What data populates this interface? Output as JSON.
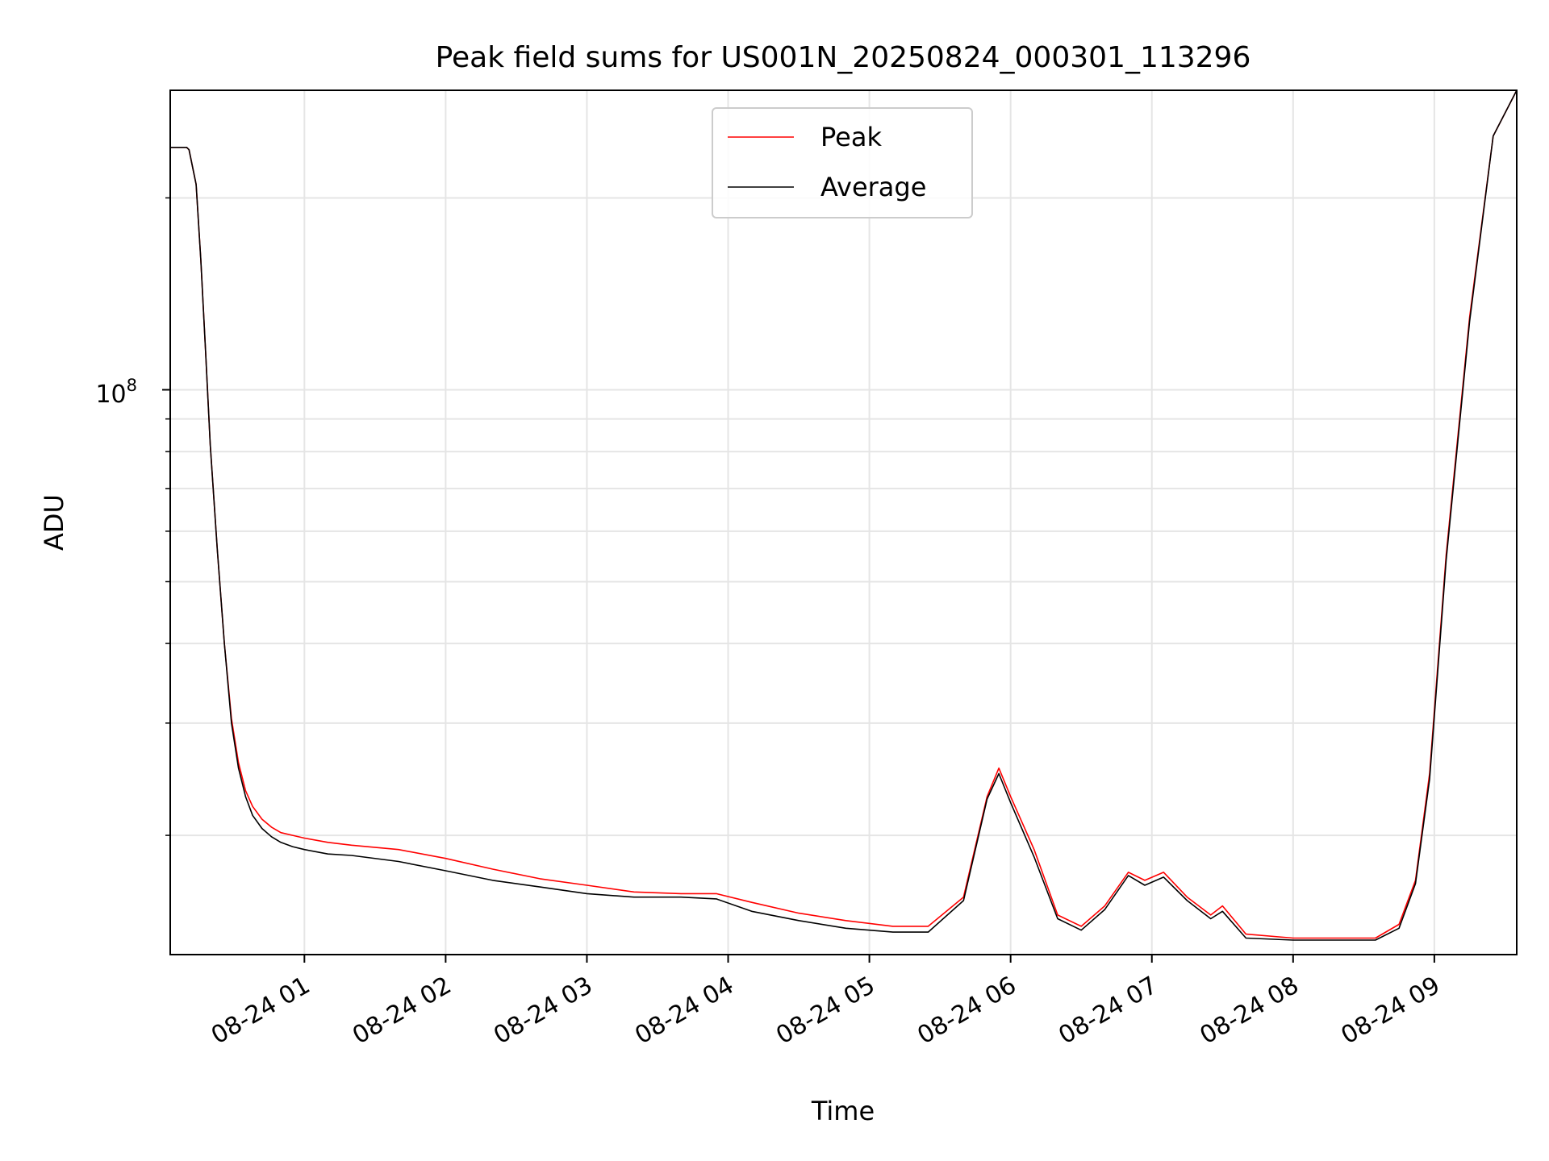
{
  "chart_data": {
    "type": "line",
    "title": "Peak field sums for US001N_20250824_000301_113296",
    "xlabel": "Time",
    "ylabel": "ADU",
    "x_scale": "time",
    "y_scale": "log",
    "xlim": [
      "2025-08-24 00:03",
      "2025-08-24 09:35"
    ],
    "ylim": [
      13000000.0,
      295000000.0
    ],
    "x_ticks": [
      "08-24 01",
      "08-24 02",
      "08-24 03",
      "08-24 04",
      "08-24 05",
      "08-24 06",
      "08-24 07",
      "08-24 08",
      "08-24 09"
    ],
    "y_tick_label": {
      "base": "10",
      "exponent": "8"
    },
    "grid": true,
    "legend_position": "upper center",
    "series": [
      {
        "name": "Peak",
        "color": "#ff0000",
        "x": [
          "00:03",
          "00:10",
          "00:11",
          "00:14",
          "00:16",
          "00:18",
          "00:20",
          "00:23",
          "00:26",
          "00:29",
          "00:32",
          "00:35",
          "00:38",
          "00:42",
          "00:46",
          "00:50",
          "00:55",
          "01:00",
          "01:10",
          "01:20",
          "01:40",
          "02:00",
          "02:20",
          "02:40",
          "03:00",
          "03:20",
          "03:40",
          "03:55",
          "04:10",
          "04:30",
          "04:50",
          "05:10",
          "05:25",
          "05:40",
          "05:50",
          "05:55",
          "06:00",
          "06:10",
          "06:20",
          "06:30",
          "06:40",
          "06:50",
          "06:57",
          "07:05",
          "07:15",
          "07:25",
          "07:30",
          "07:40",
          "08:00",
          "08:20",
          "08:35",
          "08:45",
          "08:52",
          "08:58",
          "09:05",
          "09:15",
          "09:25",
          "09:35"
        ],
        "y": [
          240000000.0,
          240000000.0,
          238000000.0,
          210000000.0,
          160000000.0,
          115000000.0,
          82000000.0,
          56000000.0,
          40000000.0,
          30500000.0,
          26000000.0,
          23500000.0,
          22200000.0,
          21200000.0,
          20600000.0,
          20200000.0,
          20000000.0,
          19800000.0,
          19500000.0,
          19300000.0,
          19000000.0,
          18400000.0,
          17700000.0,
          17100000.0,
          16700000.0,
          16300000.0,
          16200000.0,
          16200000.0,
          15700000.0,
          15100000.0,
          14700000.0,
          14400000.0,
          14400000.0,
          16000000.0,
          23000000.0,
          25500000.0,
          23000000.0,
          19000000.0,
          15000000.0,
          14400000.0,
          15500000.0,
          17500000.0,
          17000000.0,
          17500000.0,
          16000000.0,
          15000000.0,
          15500000.0,
          14000000.0,
          13800000.0,
          13800000.0,
          13800000.0,
          14500000.0,
          17000000.0,
          25000000.0,
          55000000.0,
          130000000.0,
          250000000.0,
          295000000.0
        ]
      },
      {
        "name": "Average",
        "color": "#000000",
        "x": [
          "00:03",
          "00:10",
          "00:11",
          "00:14",
          "00:16",
          "00:18",
          "00:20",
          "00:23",
          "00:26",
          "00:29",
          "00:32",
          "00:35",
          "00:38",
          "00:42",
          "00:46",
          "00:50",
          "00:55",
          "01:00",
          "01:10",
          "01:20",
          "01:40",
          "02:00",
          "02:20",
          "02:40",
          "03:00",
          "03:20",
          "03:40",
          "03:55",
          "04:10",
          "04:30",
          "04:50",
          "05:10",
          "05:25",
          "05:40",
          "05:50",
          "05:55",
          "06:00",
          "06:10",
          "06:20",
          "06:30",
          "06:40",
          "06:50",
          "06:57",
          "07:05",
          "07:15",
          "07:25",
          "07:30",
          "07:40",
          "08:00",
          "08:20",
          "08:35",
          "08:45",
          "08:52",
          "08:58",
          "09:05",
          "09:15",
          "09:25",
          "09:35"
        ],
        "y": [
          240000000.0,
          240000000.0,
          238000000.0,
          210000000.0,
          160000000.0,
          115000000.0,
          82000000.0,
          56000000.0,
          40000000.0,
          30000000.0,
          25500000.0,
          23000000.0,
          21500000.0,
          20500000.0,
          19900000.0,
          19500000.0,
          19200000.0,
          19000000.0,
          18700000.0,
          18600000.0,
          18200000.0,
          17600000.0,
          17000000.0,
          16600000.0,
          16200000.0,
          16000000.0,
          16000000.0,
          15900000.0,
          15200000.0,
          14700000.0,
          14300000.0,
          14100000.0,
          14100000.0,
          15800000.0,
          22800000.0,
          25000000.0,
          22500000.0,
          18500000.0,
          14800000.0,
          14200000.0,
          15300000.0,
          17300000.0,
          16700000.0,
          17200000.0,
          15800000.0,
          14800000.0,
          15200000.0,
          13800000.0,
          13700000.0,
          13700000.0,
          13700000.0,
          14300000.0,
          16800000.0,
          24500000.0,
          54000000.0,
          128000000.0,
          250000000.0,
          295000000.0
        ]
      }
    ]
  }
}
